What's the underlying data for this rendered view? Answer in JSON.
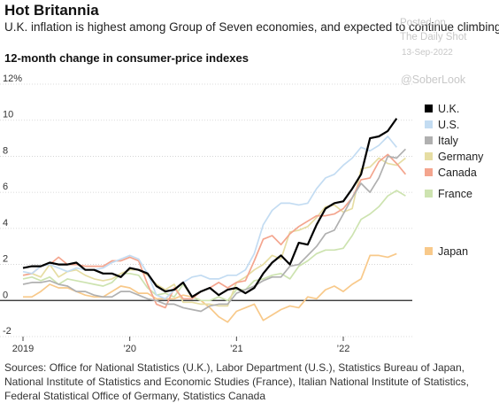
{
  "title": "Hot Britannia",
  "subtitle": "U.K. inflation is highest among Group of Seven economies, and expected to continue climbing.",
  "chart_heading": "12-month change in consumer-price indexes",
  "watermark": {
    "line1": "Posted on",
    "line2": "The Daily Shot",
    "line3": "13-Sep-2022",
    "line4": "@SoberLook"
  },
  "sources": "Sources: Office for National Statistics (U.K.), Labor Department (U.S.), Statistics Bureau of Japan, National Institute of Statistics and Economic Studies (France), Italian National Institute of Statistics, Federal Statistical Office of Germany, Statistics Canada",
  "chart_data": {
    "type": "line",
    "ylim": [
      -2,
      12
    ],
    "y_ticks": [
      -2,
      0,
      2,
      4,
      6,
      8,
      10,
      12
    ],
    "y_tick_labels": [
      "-2",
      "0",
      "2",
      "4",
      "6",
      "8",
      "10",
      "12%"
    ],
    "x_ticks": [
      "2019",
      "’20",
      "’21",
      "’22"
    ],
    "x": [
      "2019-01",
      "2019-02",
      "2019-03",
      "2019-04",
      "2019-05",
      "2019-06",
      "2019-07",
      "2019-08",
      "2019-09",
      "2019-10",
      "2019-11",
      "2019-12",
      "2020-01",
      "2020-02",
      "2020-03",
      "2020-04",
      "2020-05",
      "2020-06",
      "2020-07",
      "2020-08",
      "2020-09",
      "2020-10",
      "2020-11",
      "2020-12",
      "2021-01",
      "2021-02",
      "2021-03",
      "2021-04",
      "2021-05",
      "2021-06",
      "2021-07",
      "2021-08",
      "2021-09",
      "2021-10",
      "2021-11",
      "2021-12",
      "2022-01",
      "2022-02",
      "2022-03",
      "2022-04",
      "2022-05",
      "2022-06",
      "2022-07",
      "2022-08"
    ],
    "series": [
      {
        "name": "U.K.",
        "color": "#000000",
        "values": [
          1.8,
          1.9,
          1.9,
          2.1,
          2.0,
          2.0,
          2.1,
          1.7,
          1.7,
          1.5,
          1.5,
          1.3,
          1.8,
          1.7,
          1.5,
          0.8,
          0.5,
          0.6,
          1.0,
          0.2,
          0.5,
          0.7,
          0.3,
          0.6,
          0.7,
          0.4,
          0.7,
          1.5,
          2.1,
          2.5,
          2.0,
          3.2,
          3.1,
          4.2,
          5.1,
          5.4,
          5.5,
          6.2,
          7.0,
          9.0,
          9.1,
          9.4,
          10.1,
          null
        ]
      },
      {
        "name": "U.S.",
        "color": "#c3dcf2",
        "values": [
          1.6,
          1.5,
          1.9,
          2.0,
          1.8,
          1.6,
          1.8,
          1.7,
          1.7,
          1.8,
          2.1,
          2.3,
          2.5,
          2.3,
          1.5,
          0.3,
          0.1,
          0.6,
          1.0,
          1.3,
          1.4,
          1.2,
          1.2,
          1.4,
          1.4,
          1.7,
          2.6,
          4.2,
          5.0,
          5.4,
          5.4,
          5.3,
          5.4,
          6.2,
          6.8,
          7.0,
          7.5,
          7.9,
          8.5,
          8.3,
          8.6,
          9.1,
          8.5,
          null
        ]
      },
      {
        "name": "Italy",
        "color": "#b0b0b0",
        "values": [
          0.9,
          1.0,
          1.0,
          1.1,
          0.9,
          0.8,
          0.5,
          0.5,
          0.3,
          0.2,
          0.2,
          0.5,
          0.5,
          0.3,
          0.1,
          0.0,
          -0.2,
          -0.2,
          -0.4,
          -0.5,
          -0.6,
          -0.3,
          -0.2,
          -0.2,
          0.4,
          0.6,
          0.8,
          1.1,
          1.3,
          1.3,
          1.9,
          2.0,
          2.5,
          3.0,
          3.7,
          3.9,
          4.8,
          5.7,
          6.5,
          6.0,
          6.8,
          8.0,
          7.9,
          8.4
        ]
      },
      {
        "name": "Germany",
        "color": "#e6dda3",
        "values": [
          1.4,
          1.5,
          1.3,
          2.0,
          1.3,
          1.6,
          1.7,
          1.4,
          1.2,
          1.1,
          1.2,
          1.5,
          1.7,
          1.7,
          1.4,
          0.9,
          0.6,
          0.9,
          -0.1,
          -0.1,
          -0.2,
          -0.2,
          -0.3,
          -0.3,
          1.0,
          1.3,
          1.7,
          2.0,
          2.5,
          2.3,
          3.8,
          3.9,
          4.1,
          4.6,
          5.2,
          5.3,
          4.9,
          5.1,
          7.3,
          7.4,
          7.9,
          7.6,
          7.5,
          7.9
        ]
      },
      {
        "name": "Canada",
        "color": "#f4a58e",
        "values": [
          1.4,
          1.5,
          1.9,
          2.0,
          2.4,
          2.0,
          2.0,
          1.9,
          1.9,
          1.9,
          2.2,
          2.2,
          2.4,
          2.2,
          0.9,
          -0.2,
          -0.4,
          0.7,
          0.1,
          0.1,
          0.5,
          0.7,
          1.0,
          0.7,
          1.0,
          1.1,
          2.2,
          3.4,
          3.6,
          3.1,
          3.7,
          4.1,
          4.4,
          4.7,
          4.7,
          4.8,
          5.1,
          5.7,
          6.7,
          6.8,
          7.7,
          8.1,
          7.6,
          7.0
        ]
      },
      {
        "name": "France",
        "color": "#cde3b0",
        "values": [
          1.2,
          1.3,
          1.1,
          1.3,
          0.9,
          1.2,
          1.1,
          1.0,
          0.9,
          0.8,
          1.0,
          1.5,
          1.5,
          1.4,
          0.7,
          0.3,
          0.4,
          0.2,
          0.9,
          0.2,
          0.0,
          0.0,
          0.2,
          0.0,
          0.6,
          0.6,
          1.1,
          1.2,
          1.4,
          1.5,
          1.2,
          1.9,
          2.2,
          2.6,
          2.8,
          2.8,
          2.9,
          3.6,
          4.5,
          4.8,
          5.2,
          5.8,
          6.1,
          5.8
        ]
      },
      {
        "name": "Japan",
        "color": "#f8c98a",
        "values": [
          0.2,
          0.2,
          0.5,
          0.9,
          0.7,
          0.7,
          0.5,
          0.3,
          0.2,
          0.2,
          0.5,
          0.8,
          0.7,
          0.4,
          0.4,
          0.1,
          0.1,
          0.1,
          0.3,
          0.2,
          0.0,
          -0.4,
          -0.9,
          -1.2,
          -0.6,
          -0.4,
          -0.2,
          -1.1,
          -0.8,
          -0.5,
          -0.3,
          -0.4,
          0.2,
          0.1,
          0.6,
          0.8,
          0.5,
          0.9,
          1.2,
          2.5,
          2.5,
          2.4,
          2.6,
          null
        ]
      }
    ],
    "legend_position": "right"
  }
}
